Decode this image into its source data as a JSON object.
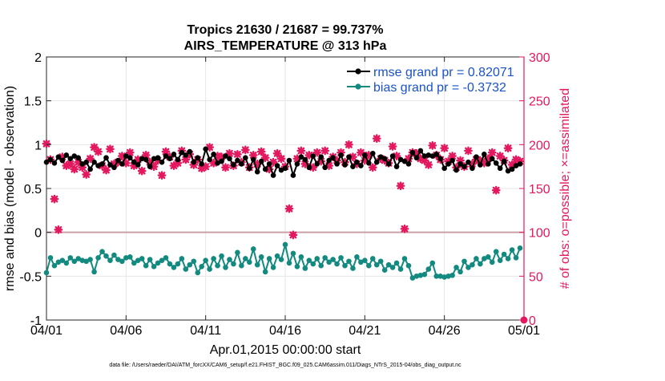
{
  "colors": {
    "rmse": "#000000",
    "bias": "#138a80",
    "obs": "#e3185f",
    "zero_line": "#c9a0a8",
    "legend_text": "#1a52c9",
    "grid": "#e6e6e6"
  },
  "chart_data": {
    "type": "line",
    "title": "Tropics 21630 / 21687 = 99.737%",
    "subtitle": "AIRS_TEMPERATURE @ 313 hPa",
    "xlabel": "Apr.01,2015 00:00:00 start",
    "ylabel": "rmse and bias (model - observation)",
    "y2label": "# of obs: o=possible; ×=assimilated",
    "footnote": "data file: /Users/raeder/DAI/ATM_forcXX/CAM6_setup/f.e21.FHIST_BGC.f09_025.CAM6assim.011/Diags_NTrS_2015-04/obs_diag_output.nc",
    "xlim": [
      0,
      30
    ],
    "ylim": [
      -1,
      2
    ],
    "y2lim": [
      0,
      300
    ],
    "x_ticks": [
      0,
      5,
      10,
      15,
      20,
      25,
      30
    ],
    "x_tick_labels": [
      "04/01",
      "04/06",
      "04/11",
      "04/16",
      "04/21",
      "04/26",
      "05/01"
    ],
    "y_ticks": [
      -1,
      -0.5,
      0,
      0.5,
      1,
      1.5,
      2
    ],
    "y_tick_labels": [
      "-1",
      "-0.5",
      "0",
      "0.5",
      "1",
      "1.5",
      "2"
    ],
    "y2_ticks": [
      0,
      50,
      100,
      150,
      200,
      250,
      300
    ],
    "y2_tick_labels": [
      "0",
      "50",
      "100",
      "150",
      "200",
      "250",
      "300"
    ],
    "legend": [
      {
        "label": "rmse grand pr = 0.82071",
        "series": "rmse"
      },
      {
        "label": "bias grand pr = -0.3732",
        "series": "bias"
      }
    ],
    "legend_position": "top-right",
    "x": [
      0.0,
      0.25,
      0.5,
      0.75,
      1.0,
      1.25,
      1.5,
      1.75,
      2.0,
      2.25,
      2.5,
      2.75,
      3.0,
      3.25,
      3.5,
      3.75,
      4.0,
      4.25,
      4.5,
      4.75,
      5.0,
      5.25,
      5.5,
      5.75,
      6.0,
      6.25,
      6.5,
      6.75,
      7.0,
      7.25,
      7.5,
      7.75,
      8.0,
      8.25,
      8.5,
      8.75,
      9.0,
      9.25,
      9.5,
      9.75,
      10.0,
      10.25,
      10.5,
      10.75,
      11.0,
      11.25,
      11.5,
      11.75,
      12.0,
      12.25,
      12.5,
      12.75,
      13.0,
      13.25,
      13.5,
      13.75,
      14.0,
      14.25,
      14.5,
      14.75,
      15.0,
      15.25,
      15.5,
      15.75,
      16.0,
      16.25,
      16.5,
      16.75,
      17.0,
      17.25,
      17.5,
      17.75,
      18.0,
      18.25,
      18.5,
      18.75,
      19.0,
      19.25,
      19.5,
      19.75,
      20.0,
      20.25,
      20.5,
      20.75,
      21.0,
      21.25,
      21.5,
      21.75,
      22.0,
      22.25,
      22.5,
      22.75,
      23.0,
      23.25,
      23.5,
      23.75,
      24.0,
      24.25,
      24.5,
      24.75,
      25.0,
      25.25,
      25.5,
      25.75,
      26.0,
      26.25,
      26.5,
      26.75,
      27.0,
      27.25,
      27.5,
      27.75,
      28.0,
      28.25,
      28.5,
      28.75,
      29.0,
      29.25,
      29.5,
      29.75
    ],
    "series": [
      {
        "name": "rmse",
        "axis": "left",
        "marker": "circle",
        "values": [
          0.8,
          0.83,
          0.79,
          0.86,
          0.82,
          0.88,
          0.84,
          0.87,
          0.85,
          0.78,
          0.8,
          0.72,
          0.8,
          0.76,
          0.78,
          0.85,
          0.77,
          0.74,
          0.82,
          0.78,
          0.87,
          0.85,
          0.8,
          0.77,
          0.84,
          0.83,
          0.75,
          0.84,
          0.85,
          0.8,
          0.87,
          0.84,
          0.89,
          0.83,
          0.91,
          0.88,
          0.92,
          0.8,
          0.85,
          0.78,
          0.95,
          0.83,
          0.89,
          0.79,
          0.81,
          0.87,
          0.84,
          0.77,
          0.82,
          0.78,
          0.85,
          0.73,
          0.83,
          0.69,
          0.81,
          0.72,
          0.78,
          0.65,
          0.76,
          0.71,
          0.73,
          0.82,
          0.65,
          0.78,
          0.86,
          0.83,
          0.74,
          0.87,
          0.78,
          0.86,
          0.74,
          0.82,
          0.85,
          0.78,
          0.88,
          0.77,
          0.86,
          0.75,
          0.8,
          0.76,
          0.88,
          0.79,
          0.9,
          0.8,
          0.86,
          0.84,
          0.78,
          0.87,
          0.75,
          0.83,
          0.81,
          0.78,
          0.91,
          0.85,
          0.93,
          0.87,
          0.88,
          0.87,
          0.89,
          0.84,
          0.73,
          0.78,
          0.82,
          0.71,
          0.78,
          0.75,
          0.8,
          0.73,
          0.86,
          0.77,
          0.89,
          0.78,
          0.84,
          0.79,
          0.73,
          0.81,
          0.7,
          0.72,
          0.76,
          0.78
        ]
      },
      {
        "name": "bias",
        "axis": "left",
        "marker": "circle",
        "values": [
          -0.46,
          -0.29,
          -0.38,
          -0.34,
          -0.32,
          -0.35,
          -0.29,
          -0.33,
          -0.3,
          -0.32,
          -0.33,
          -0.31,
          -0.45,
          -0.29,
          -0.22,
          -0.27,
          -0.32,
          -0.26,
          -0.31,
          -0.33,
          -0.29,
          -0.28,
          -0.35,
          -0.32,
          -0.3,
          -0.38,
          -0.31,
          -0.39,
          -0.35,
          -0.32,
          -0.29,
          -0.36,
          -0.4,
          -0.36,
          -0.3,
          -0.42,
          -0.37,
          -0.33,
          -0.46,
          -0.39,
          -0.32,
          -0.42,
          -0.3,
          -0.38,
          -0.27,
          -0.4,
          -0.31,
          -0.36,
          -0.23,
          -0.38,
          -0.3,
          -0.34,
          -0.19,
          -0.37,
          -0.28,
          -0.45,
          -0.3,
          -0.4,
          -0.27,
          -0.31,
          -0.14,
          -0.35,
          -0.24,
          -0.39,
          -0.28,
          -0.41,
          -0.32,
          -0.36,
          -0.3,
          -0.38,
          -0.29,
          -0.34,
          -0.31,
          -0.36,
          -0.29,
          -0.38,
          -0.33,
          -0.41,
          -0.28,
          -0.34,
          -0.32,
          -0.38,
          -0.3,
          -0.37,
          -0.33,
          -0.43,
          -0.37,
          -0.4,
          -0.35,
          -0.42,
          -0.3,
          -0.38,
          -0.52,
          -0.5,
          -0.49,
          -0.48,
          -0.42,
          -0.35,
          -0.5,
          -0.5,
          -0.51,
          -0.5,
          -0.49,
          -0.4,
          -0.45,
          -0.33,
          -0.4,
          -0.37,
          -0.3,
          -0.36,
          -0.3,
          -0.28,
          -0.34,
          -0.22,
          -0.32,
          -0.25,
          -0.3,
          -0.2,
          -0.29,
          -0.18
        ]
      },
      {
        "name": "obs_assimilated",
        "axis": "right",
        "marker": "x",
        "values": [
          201,
          183,
          138,
          103,
          186,
          176,
          178,
          172,
          180,
          174,
          166,
          184,
          197,
          192,
          176,
          171,
          195,
          178,
          180,
          187,
          179,
          191,
          176,
          183,
          170,
          188,
          180,
          175,
          182,
          165,
          192,
          186,
          176,
          179,
          193,
          183,
          189,
          177,
          183,
          173,
          175,
          197,
          179,
          187,
          186,
          174,
          190,
          176,
          189,
          180,
          194,
          174,
          188,
          178,
          192,
          185,
          172,
          180,
          190,
          184,
          175,
          127,
          97,
          184,
          193,
          178,
          188,
          174,
          191,
          181,
          193,
          176,
          186,
          182,
          191,
          180,
          200,
          186,
          178,
          191,
          182,
          188,
          174,
          207,
          184,
          182,
          179,
          198,
          187,
          153,
          104,
          184,
          191,
          190,
          184,
          182,
          177,
          199,
          188,
          183,
          196,
          181,
          187,
          174,
          182,
          175,
          193,
          178,
          183,
          182,
          179,
          184,
          191,
          148,
          187,
          182,
          196,
          177,
          183,
          181
        ]
      }
    ]
  }
}
